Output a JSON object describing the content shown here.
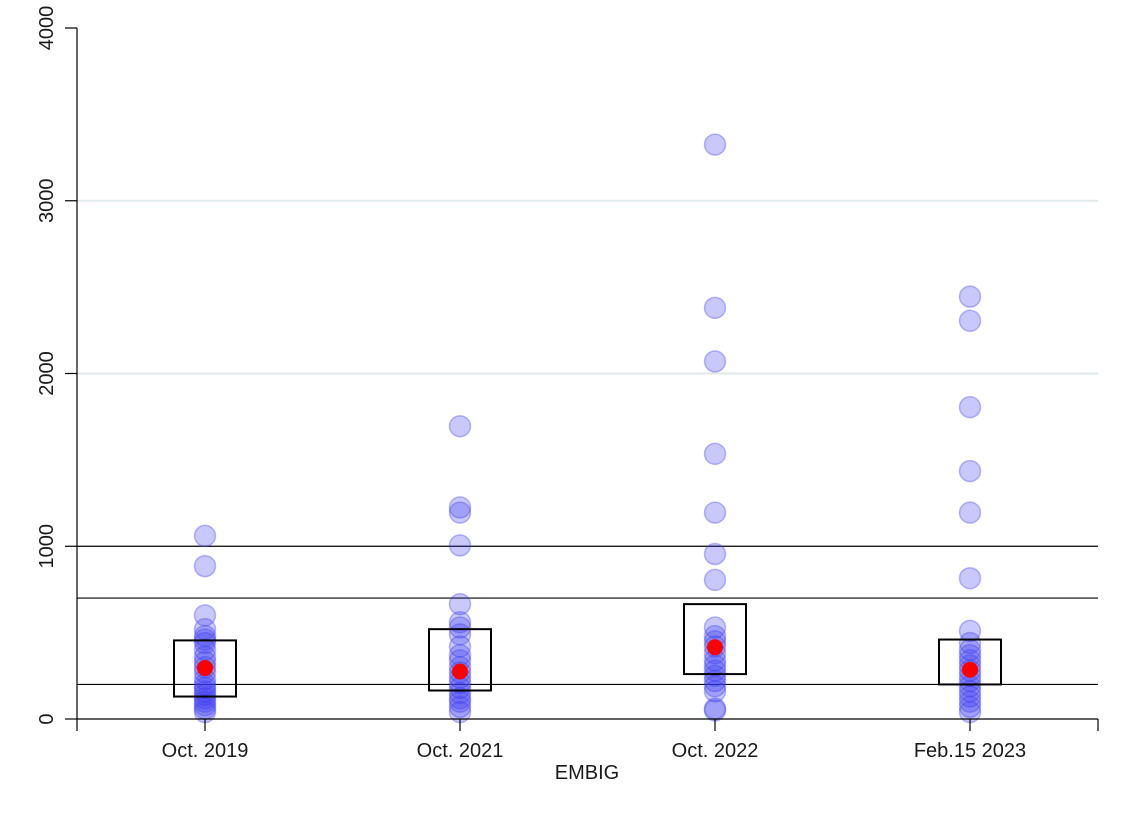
{
  "chart_data": {
    "type": "scatter",
    "title": "",
    "xlabel": "EMBIG",
    "ylabel": "",
    "ylim": [
      0,
      4000
    ],
    "yticks": [
      "0",
      "1000",
      "2000",
      "3000",
      "4000"
    ],
    "categories": [
      "Oct. 2019",
      "Oct. 2021",
      "Oct. 2022",
      "Feb.15 2023"
    ],
    "gridlines": [
      2000,
      3000
    ],
    "reference_lines": [
      200,
      700,
      1000
    ],
    "point_color": "#3b3bf0",
    "median_color": "#ff0000",
    "box_color": "#000000",
    "grid_color": "#dfe9ec",
    "groups": [
      {
        "category": "Oct. 2019",
        "points": [
          1060,
          885,
          600,
          520,
          480,
          460,
          440,
          400,
          360,
          330,
          300,
          270,
          230,
          200,
          180,
          160,
          140,
          120,
          100,
          80,
          60,
          40
        ],
        "box": {
          "q1": 130,
          "q3": 455
        },
        "median": 295
      },
      {
        "category": "Oct. 2021",
        "points": [
          1695,
          1225,
          1195,
          1005,
          665,
          560,
          530,
          490,
          420,
          370,
          340,
          300,
          270,
          240,
          210,
          180,
          150,
          120,
          100,
          70,
          40
        ],
        "box": {
          "q1": 165,
          "q3": 520
        },
        "median": 275
      },
      {
        "category": "Oct. 2022",
        "points": [
          3325,
          2380,
          2070,
          1535,
          1195,
          955,
          805,
          530,
          480,
          450,
          420,
          380,
          340,
          310,
          280,
          250,
          220,
          190,
          160,
          60,
          50
        ],
        "box": {
          "q1": 260,
          "q3": 665
        },
        "median": 415
      },
      {
        "category": "Feb.15 2023",
        "points": [
          2445,
          2305,
          1805,
          1435,
          1195,
          815,
          510,
          440,
          400,
          370,
          340,
          310,
          280,
          250,
          220,
          190,
          160,
          130,
          100,
          70,
          40
        ],
        "box": {
          "q1": 200,
          "q3": 460
        },
        "median": 285
      }
    ]
  }
}
